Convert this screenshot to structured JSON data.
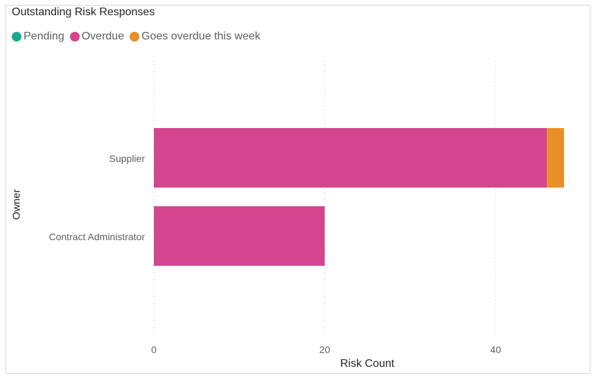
{
  "title": "Outstanding Risk Responses",
  "legend": [
    {
      "label": "Pending",
      "color": "#1aab8c"
    },
    {
      "label": "Overdue",
      "color": "#d5458e"
    },
    {
      "label": "Goes overdue this week",
      "color": "#e88f26"
    }
  ],
  "chart_data": {
    "type": "bar",
    "orientation": "horizontal",
    "stacked": true,
    "title": "Outstanding Risk Responses",
    "xlabel": "Risk Count",
    "ylabel": "Owner",
    "categories": [
      "Supplier",
      "Contract Administrator"
    ],
    "series": [
      {
        "name": "Pending",
        "color": "#1aab8c",
        "values": [
          0,
          0
        ]
      },
      {
        "name": "Overdue",
        "color": "#d5458e",
        "values": [
          46,
          20
        ]
      },
      {
        "name": "Goes overdue this week",
        "color": "#e88f26",
        "values": [
          2,
          0
        ]
      }
    ],
    "xticks": [
      0,
      20,
      40
    ],
    "xlim": [
      0,
      48
    ],
    "grid": "vertical-dotted",
    "legend_position": "top-left"
  }
}
